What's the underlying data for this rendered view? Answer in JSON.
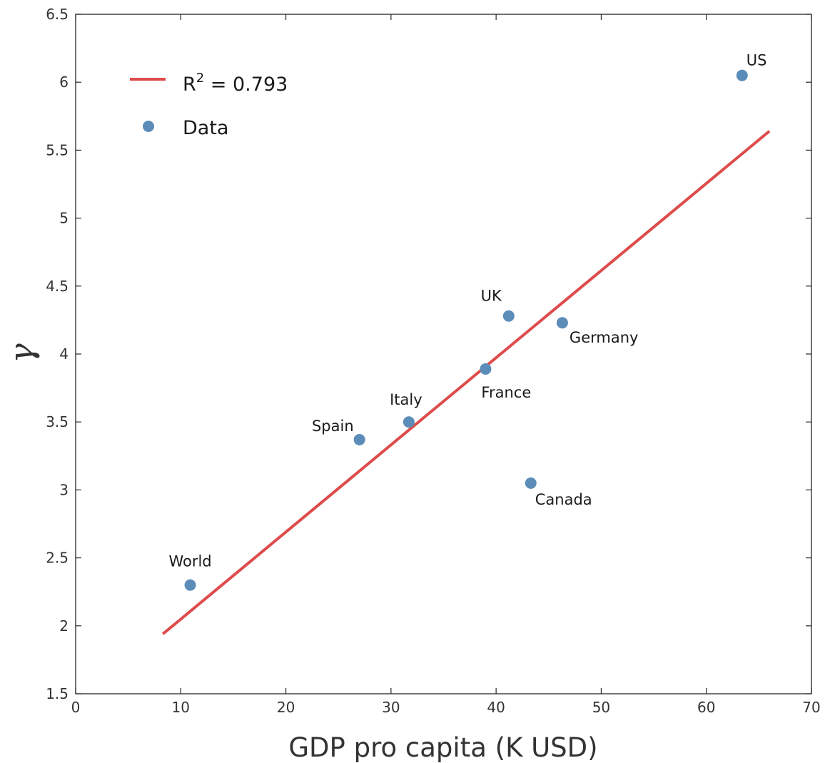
{
  "chart_data": {
    "type": "scatter",
    "xlabel": "GDP pro capita (K USD)",
    "ylabel": "γ",
    "xlim": [
      0,
      70
    ],
    "ylim": [
      1.5,
      6.5
    ],
    "x_ticks": [
      0,
      10,
      20,
      30,
      40,
      50,
      60,
      70
    ],
    "x_tick_labels": [
      "0",
      "10",
      "20",
      "30",
      "40",
      "50",
      "60",
      "70"
    ],
    "y_ticks": [
      1.5,
      2,
      2.5,
      3,
      3.5,
      4,
      4.5,
      5,
      5.5,
      6,
      6.5
    ],
    "y_tick_labels": [
      "1.5",
      "2",
      "2.5",
      "3",
      "3.5",
      "4",
      "4.5",
      "5",
      "5.5",
      "6",
      "6.5"
    ],
    "grid": false,
    "legend_position": "top-left",
    "series": [
      {
        "name": "Data",
        "kind": "scatter",
        "color": "#5b8db8",
        "points": [
          {
            "label": "World",
            "x": 10.9,
            "y": 2.3
          },
          {
            "label": "Spain",
            "x": 27.0,
            "y": 3.37
          },
          {
            "label": "Italy",
            "x": 31.7,
            "y": 3.5
          },
          {
            "label": "France",
            "x": 39.0,
            "y": 3.89
          },
          {
            "label": "UK",
            "x": 41.2,
            "y": 4.28
          },
          {
            "label": "Canada",
            "x": 43.3,
            "y": 3.05
          },
          {
            "label": "Germany",
            "x": 46.3,
            "y": 4.23
          },
          {
            "label": "US",
            "x": 63.4,
            "y": 6.05
          }
        ]
      },
      {
        "name": "R",
        "name_superscript": "2",
        "name_suffix": " = 0.793",
        "kind": "line",
        "color": "#de4b4b",
        "x": [
          8.3,
          66.0
        ],
        "y": [
          1.94,
          5.64
        ]
      }
    ]
  }
}
